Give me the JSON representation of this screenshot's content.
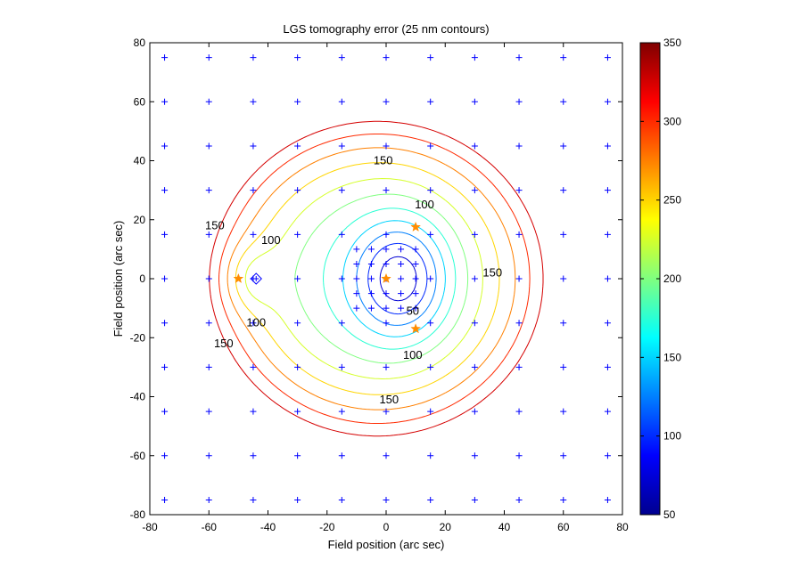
{
  "chart_data": {
    "type": "contour",
    "title": "LGS tomography error (25 nm contours)",
    "xlabel": "Field position (arc sec)",
    "ylabel": "Field position (arc sec)",
    "xlim": [
      -80,
      80
    ],
    "ylim": [
      -80,
      80
    ],
    "xticks": [
      -80,
      -60,
      -40,
      -20,
      0,
      20,
      40,
      60,
      80
    ],
    "yticks": [
      -80,
      -60,
      -40,
      -20,
      0,
      20,
      40,
      60,
      80
    ],
    "xtick_labels": [
      "-80",
      "-60",
      "-40",
      "-20",
      "0",
      "20",
      "40",
      "60",
      "80"
    ],
    "ytick_labels": [
      "-80",
      "-60",
      "-40",
      "-20",
      "0",
      "20",
      "40",
      "60",
      "80"
    ],
    "colorbar": {
      "range": [
        50,
        350
      ],
      "ticks": [
        50,
        100,
        150,
        200,
        250,
        300,
        350
      ],
      "tick_labels": [
        "50",
        "100",
        "150",
        "200",
        "250",
        "300",
        "350"
      ],
      "colormap": "jet"
    },
    "contour_levels": [
      50,
      75,
      100,
      125,
      150,
      175,
      200,
      225,
      250,
      275,
      300,
      325
    ],
    "contour_labels": [
      {
        "text": "150",
        "x": -1,
        "y": 40
      },
      {
        "text": "100",
        "x": 13,
        "y": 25
      },
      {
        "text": "150",
        "x": -58,
        "y": 18
      },
      {
        "text": "100",
        "x": -39,
        "y": 13
      },
      {
        "text": "150",
        "x": 36,
        "y": 2
      },
      {
        "text": "50",
        "x": 9,
        "y": -11
      },
      {
        "text": "100",
        "x": -44,
        "y": -15
      },
      {
        "text": "150",
        "x": -55,
        "y": -22
      },
      {
        "text": "100",
        "x": 9,
        "y": -26
      },
      {
        "text": "150",
        "x": 1,
        "y": -41
      }
    ],
    "sample_grid": {
      "outer_x": [
        -75,
        -60,
        -45,
        -30,
        -15,
        0,
        15,
        30,
        45,
        60,
        75
      ],
      "outer_y": [
        -75,
        -60,
        -45,
        -30,
        -15,
        0,
        15,
        30,
        45,
        60,
        75
      ],
      "inner_x": [
        -10,
        -5,
        0,
        5,
        10
      ],
      "inner_y": [
        -10,
        -5,
        0,
        5,
        10
      ],
      "marker": "+",
      "color": "#0000ff"
    },
    "guide_stars": [
      {
        "x": -50,
        "y": 0
      },
      {
        "x": 0,
        "y": 0
      },
      {
        "x": 10,
        "y": 17.5
      },
      {
        "x": 10,
        "y": -17
      }
    ],
    "diamond_marker": {
      "x": -44,
      "y": 0
    }
  }
}
